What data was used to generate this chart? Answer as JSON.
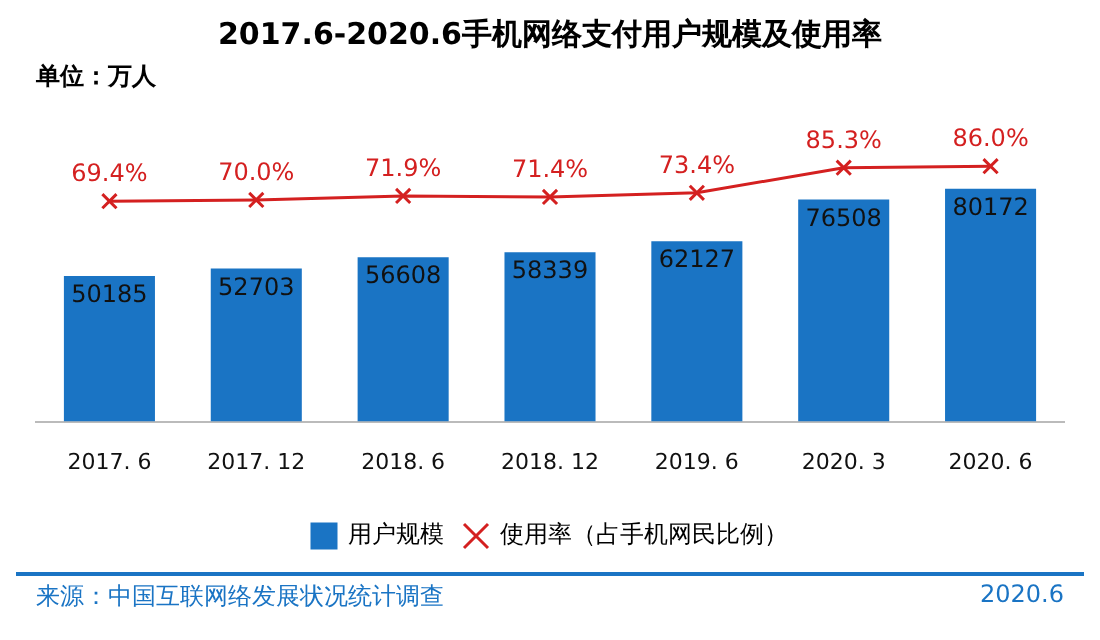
{
  "chart_data": {
    "type": "bar",
    "title": "2017.6-2020.6手机网络支付用户规模及使用率",
    "subtitle": "单位：万人",
    "categories": [
      "2017. 6",
      "2017. 12",
      "2018. 6",
      "2018. 12",
      "2019. 6",
      "2020. 3",
      "2020. 6"
    ],
    "series": [
      {
        "name": "用户规模",
        "color": "#1a74c4",
        "values": [
          50185,
          52703,
          56608,
          58339,
          62127,
          76508,
          80172
        ]
      },
      {
        "name": "使用率（占手机网民比例）",
        "type": "line",
        "axis": "y2",
        "color": "#d42020",
        "marker": "cross",
        "values": [
          69.4,
          70.0,
          71.9,
          71.4,
          73.4,
          85.3,
          86.0
        ],
        "value_labels": [
          "69.4%",
          "70.0%",
          "71.9%",
          "71.4%",
          "73.4%",
          "85.3%",
          "86.0%"
        ]
      }
    ],
    "tick_labels": "x",
    "data_labels": true,
    "grid": false,
    "legend": "bottom",
    "annotations": [
      "来源：中国互联网络发展状况统计调查",
      "2020.6"
    ]
  }
}
